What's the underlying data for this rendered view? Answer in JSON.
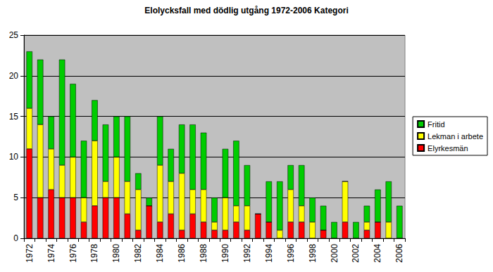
{
  "chart_data": {
    "type": "bar",
    "title": "Elolycksfall med dödlig utgång 1972-2006 Kategori",
    "categories": [
      "1972",
      null,
      "1974",
      null,
      "1976",
      null,
      "1978",
      null,
      "1980",
      null,
      "1982",
      null,
      "1984",
      null,
      "1986",
      null,
      "1988",
      null,
      "1990",
      null,
      "1992",
      null,
      "1994",
      null,
      "1996",
      null,
      "1998",
      null,
      "2000",
      null,
      "2002",
      null,
      "2004",
      null,
      "2006"
    ],
    "series": [
      {
        "name": "Elyrkesmän",
        "color": "#ff0000",
        "values": [
          11,
          5,
          6,
          5,
          5,
          2,
          4,
          5,
          5,
          3,
          1,
          4,
          2,
          3,
          1,
          3,
          2,
          1,
          1,
          2,
          1,
          3,
          2,
          0,
          2,
          2,
          0,
          1,
          0,
          2,
          0,
          1,
          2,
          0,
          0
        ]
      },
      {
        "name": "Lekman i arbete",
        "color": "#ffff00",
        "values": [
          5,
          9,
          5,
          4,
          5,
          3,
          8,
          2,
          5,
          4,
          5,
          0,
          7,
          4,
          7,
          3,
          4,
          1,
          4,
          2,
          3,
          0,
          0,
          1,
          4,
          2,
          2,
          0,
          0,
          5,
          0,
          1,
          0,
          2,
          0
        ]
      },
      {
        "name": "Fritid",
        "color": "#00cc00",
        "values": [
          7,
          8,
          4,
          13,
          9,
          7,
          5,
          7,
          5,
          8,
          2,
          1,
          6,
          4,
          6,
          8,
          7,
          3,
          6,
          8,
          5,
          0,
          5,
          6,
          3,
          5,
          3,
          3,
          2,
          0,
          2,
          2,
          4,
          5,
          4
        ]
      }
    ],
    "stacked": true,
    "ylim": [
      0,
      25
    ],
    "yticks": [
      0,
      5,
      10,
      15,
      20,
      25
    ],
    "grid": true,
    "legend": "right"
  }
}
